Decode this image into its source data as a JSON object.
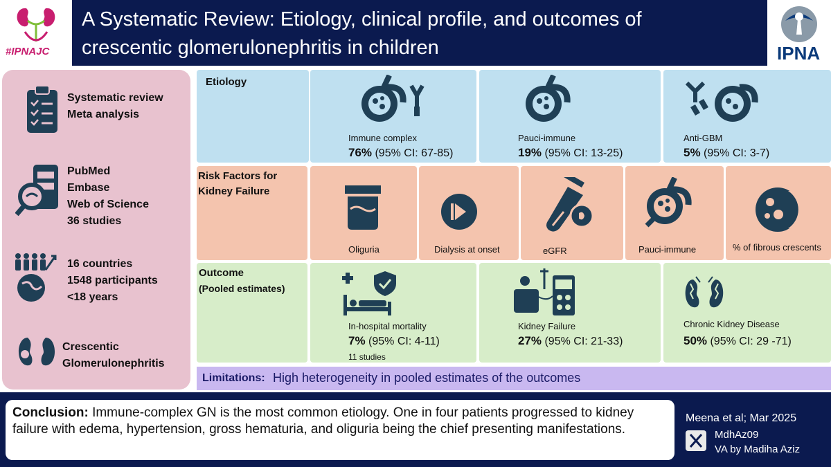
{
  "header": {
    "title": "A Systematic Review: Etiology, clinical profile, and outcomes of crescentic glomerulonephritis  in children",
    "left_logo_text": "#IPNAJC",
    "right_logo_text": "IPNA"
  },
  "left_panel": {
    "study_design": [
      "Systematic review",
      "Meta analysis"
    ],
    "databases": [
      "PubMed",
      "Embase",
      "Web of Science",
      "36 studies"
    ],
    "population": [
      "16 countries",
      "1548 participants",
      "<18 years"
    ],
    "condition": [
      "Crescentic",
      "Glomerulonephritis"
    ]
  },
  "etiology": {
    "label": "Etiology",
    "items": [
      {
        "name": "Immune  complex",
        "pct": "76%",
        "ci": " (95% CI: 67-85)"
      },
      {
        "name": "Pauci-immune",
        "pct": "19%",
        "ci": " (95% CI: 13-25)"
      },
      {
        "name": "Anti-GBM",
        "pct": "5%",
        "ci": " (95% CI: 3-7)"
      }
    ]
  },
  "risk_factors": {
    "label": "Risk Factors for Kidney Failure",
    "items": [
      "Oliguria",
      "Dialysis at onset",
      "eGFR",
      "Pauci-immune",
      "% of fibrous crescents"
    ]
  },
  "outcome": {
    "label": "Outcome",
    "sublabel": "(Pooled estimates)",
    "items": [
      {
        "name": "In-hospital mortality",
        "pct": "7%",
        "ci": " (95% CI: 4-11)",
        "note": "11 studies"
      },
      {
        "name": "Kidney Failure",
        "pct": "27%",
        "ci": " (95% CI: 21-33)",
        "note": ""
      },
      {
        "name": "Chronic Kidney Disease",
        "pct": "50%",
        "ci": " (95% CI: 29 -71)",
        "note": ""
      }
    ]
  },
  "limitations": {
    "label": "Limitations:",
    "text": "High heterogeneity in pooled estimates of the outcomes"
  },
  "conclusion": {
    "label": "Conclusion:",
    "text": "Immune-complex GN  is the most common etiology. One in four patients  progressed to kidney failure with edema, hypertension, gross hematuria, and oliguria being the chief presenting manifestations."
  },
  "credits": {
    "citation": "Meena et al; Mar 2025",
    "handle": "MdhAz09",
    "author": "VA by Madiha Aziz"
  },
  "colors": {
    "navy": "#0b1a4f",
    "etiology_bg": "#bfe0f0",
    "risk_bg": "#f4c4ae",
    "outcome_bg": "#d7edc9",
    "limitations_bg": "#c9b8f0",
    "left_bg": "#e8c2cf",
    "icon": "#1f3f55"
  }
}
